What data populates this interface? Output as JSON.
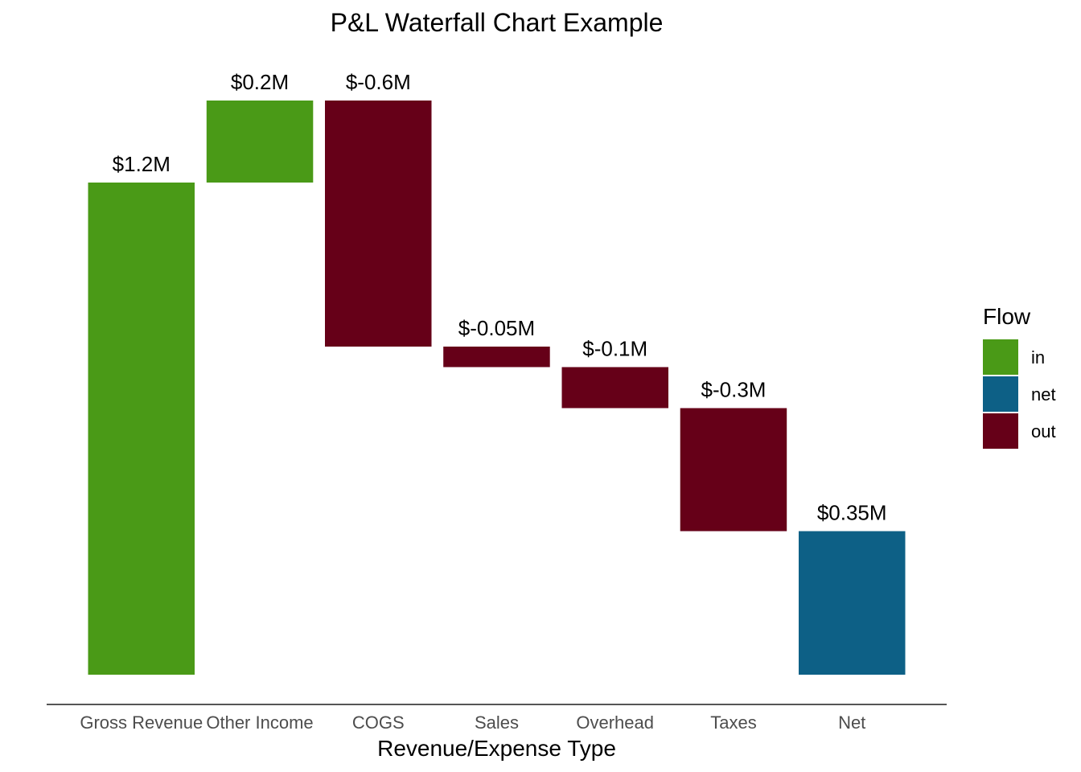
{
  "chart_data": {
    "type": "bar",
    "subtype": "waterfall",
    "title": "P&L Waterfall Chart Example",
    "xlabel": "Revenue/Expense Type",
    "ylabel": "",
    "categories": [
      "Gross Revenue",
      "Other Income",
      "COGS",
      "Sales",
      "Overhead",
      "Taxes",
      "Net"
    ],
    "values": [
      1.2,
      0.2,
      -0.6,
      -0.05,
      -0.1,
      -0.3,
      0.35
    ],
    "flows": [
      "in",
      "in",
      "out",
      "out",
      "out",
      "out",
      "net"
    ],
    "labels": [
      "$1.2M",
      "$0.2M",
      "$-0.6M",
      "$-0.05M",
      "$-0.1M",
      "$-0.3M",
      "$0.35M"
    ],
    "grid": false,
    "y_axis_visible": false,
    "legend": {
      "title": "Flow",
      "position": "right",
      "entries": [
        {
          "key": "in",
          "label": "in",
          "color": "#4a9a17"
        },
        {
          "key": "net",
          "label": "net",
          "color": "#0d6086"
        },
        {
          "key": "out",
          "label": "out",
          "color": "#660018"
        }
      ]
    }
  }
}
